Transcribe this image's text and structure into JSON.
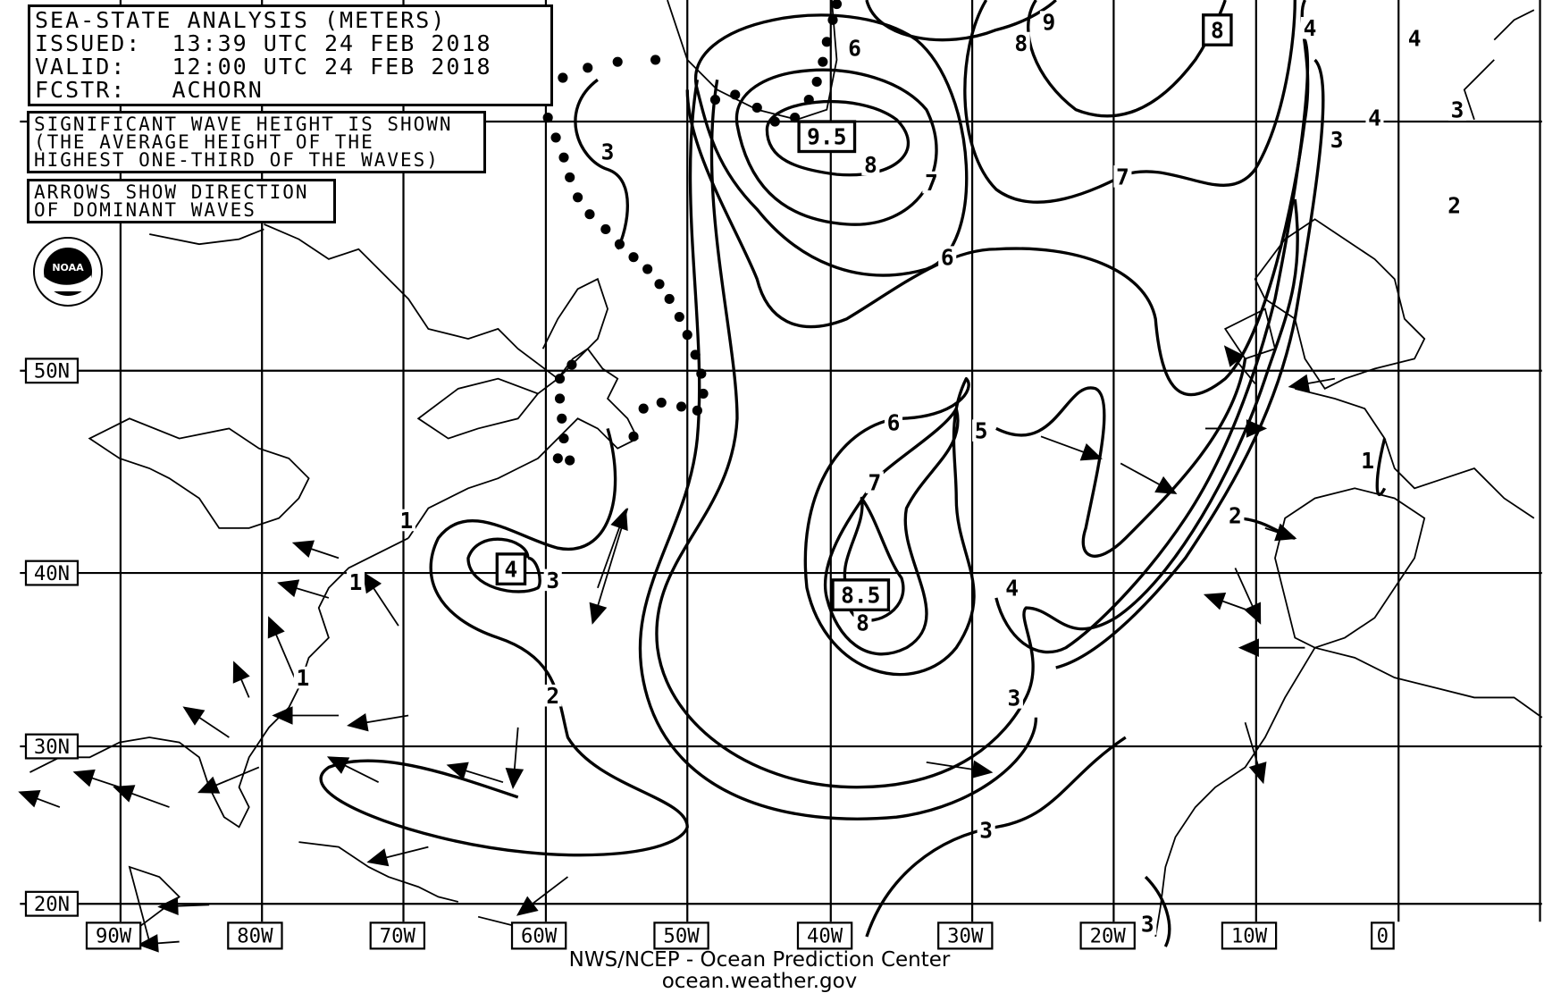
{
  "header": {
    "title": "SEA-STATE ANALYSIS (METERS)",
    "issued_label": "ISSUED:",
    "issued": "13:39 UTC 24 FEB 2018",
    "valid_label": "VALID:",
    "valid": "12:00 UTC 24 FEB 2018",
    "forecaster_label": "FCSTR:",
    "forecaster": "ACHORN"
  },
  "notes": {
    "significant_wave": [
      "SIGNIFICANT WAVE HEIGHT IS SHOWN",
      "(THE AVERAGE HEIGHT OF THE",
      "HIGHEST ONE-THIRD OF THE WAVES)"
    ],
    "arrows": [
      "ARROWS SHOW DIRECTION",
      "OF DOMINANT WAVES"
    ]
  },
  "logo": {
    "text": "NOAA",
    "icon": "noaa-logo"
  },
  "latitude_labels": [
    "50N",
    "40N",
    "30N",
    "20N"
  ],
  "longitude_labels": [
    "90W",
    "80W",
    "70W",
    "60W",
    "50W",
    "40W",
    "30W",
    "20W",
    "10W",
    "0"
  ],
  "contour_labels": [
    "9",
    "8",
    "6",
    "3",
    "8",
    "7",
    "7",
    "6",
    "3",
    "4",
    "3",
    "4",
    "4",
    "2",
    "6",
    "5",
    "7",
    "8",
    "4",
    "3",
    "2",
    "3",
    "3",
    "3",
    "1",
    "2",
    "1",
    "1",
    "1"
  ],
  "maxima_labels": [
    "8",
    "9.5",
    "8.5",
    "4"
  ],
  "credit": {
    "line1": "NWS/NCEP - Ocean Prediction Center",
    "line2": "ocean.weather.gov"
  },
  "colors": {
    "ink": "#000000",
    "background": "#ffffff"
  }
}
